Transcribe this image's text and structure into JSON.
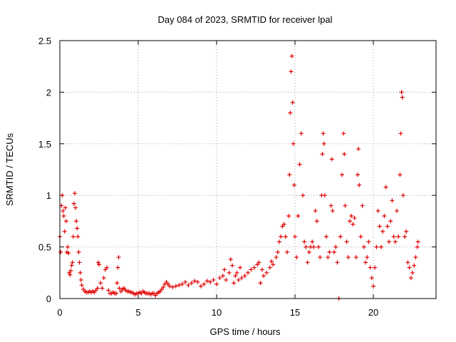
{
  "chart_data": {
    "type": "scatter",
    "title": "Day 084 of 2023, SRMTID for receiver lpal",
    "xlabel": "GPS time / hours",
    "ylabel": "SRMTID / TECUs",
    "xlim": [
      0,
      24
    ],
    "ylim": [
      0,
      2.5
    ],
    "xticks": [
      0,
      5,
      10,
      15,
      20
    ],
    "xtick_labels": [
      "0",
      "5",
      "10",
      "15",
      "20"
    ],
    "yticks": [
      0,
      0.5,
      1,
      1.5,
      2,
      2.5
    ],
    "ytick_labels": [
      "0",
      "0.5",
      "1",
      "1.5",
      "2",
      "2.5"
    ],
    "grid": true,
    "marker": "+",
    "color": "#e00000",
    "series": [
      {
        "name": "SRMTID",
        "points": [
          [
            0.0,
            0.6
          ],
          [
            0.05,
            0.45
          ],
          [
            0.1,
            0.9
          ],
          [
            0.15,
            1.0
          ],
          [
            0.2,
            0.85
          ],
          [
            0.25,
            0.8
          ],
          [
            0.3,
            0.65
          ],
          [
            0.35,
            0.88
          ],
          [
            0.4,
            0.75
          ],
          [
            0.45,
            0.45
          ],
          [
            0.5,
            0.5
          ],
          [
            0.55,
            0.44
          ],
          [
            0.6,
            0.25
          ],
          [
            0.65,
            0.23
          ],
          [
            0.7,
            0.27
          ],
          [
            0.75,
            0.32
          ],
          [
            0.8,
            0.35
          ],
          [
            0.85,
            0.6
          ],
          [
            0.9,
            0.92
          ],
          [
            0.95,
            1.02
          ],
          [
            1.0,
            0.88
          ],
          [
            1.05,
            0.75
          ],
          [
            1.1,
            0.68
          ],
          [
            1.15,
            0.6
          ],
          [
            1.2,
            0.45
          ],
          [
            1.25,
            0.35
          ],
          [
            1.3,
            0.25
          ],
          [
            1.35,
            0.18
          ],
          [
            1.4,
            0.13
          ],
          [
            1.5,
            0.09
          ],
          [
            1.6,
            0.07
          ],
          [
            1.7,
            0.06
          ],
          [
            1.8,
            0.06
          ],
          [
            1.9,
            0.07
          ],
          [
            2.0,
            0.06
          ],
          [
            2.1,
            0.07
          ],
          [
            2.2,
            0.06
          ],
          [
            2.3,
            0.08
          ],
          [
            2.4,
            0.1
          ],
          [
            2.45,
            0.35
          ],
          [
            2.5,
            0.33
          ],
          [
            2.6,
            0.15
          ],
          [
            2.7,
            0.1
          ],
          [
            2.8,
            0.2
          ],
          [
            2.9,
            0.28
          ],
          [
            3.0,
            0.3
          ],
          [
            3.1,
            0.08
          ],
          [
            3.2,
            0.05
          ],
          [
            3.3,
            0.05
          ],
          [
            3.4,
            0.06
          ],
          [
            3.5,
            0.05
          ],
          [
            3.6,
            0.05
          ],
          [
            3.65,
            0.15
          ],
          [
            3.7,
            0.3
          ],
          [
            3.75,
            0.4
          ],
          [
            3.8,
            0.1
          ],
          [
            3.9,
            0.07
          ],
          [
            4.0,
            0.09
          ],
          [
            4.1,
            0.1
          ],
          [
            4.2,
            0.08
          ],
          [
            4.3,
            0.07
          ],
          [
            4.4,
            0.07
          ],
          [
            4.5,
            0.06
          ],
          [
            4.6,
            0.06
          ],
          [
            4.7,
            0.05
          ],
          [
            4.8,
            0.04
          ],
          [
            4.9,
            0.05
          ],
          [
            5.0,
            0.05
          ],
          [
            5.1,
            0.06
          ],
          [
            5.2,
            0.05
          ],
          [
            5.3,
            0.07
          ],
          [
            5.4,
            0.06
          ],
          [
            5.5,
            0.05
          ],
          [
            5.6,
            0.05
          ],
          [
            5.7,
            0.05
          ],
          [
            5.8,
            0.04
          ],
          [
            5.9,
            0.05
          ],
          [
            6.0,
            0.05
          ],
          [
            6.1,
            0.03
          ],
          [
            6.2,
            0.05
          ],
          [
            6.3,
            0.06
          ],
          [
            6.4,
            0.07
          ],
          [
            6.5,
            0.09
          ],
          [
            6.6,
            0.11
          ],
          [
            6.7,
            0.14
          ],
          [
            6.8,
            0.16
          ],
          [
            6.9,
            0.14
          ],
          [
            7.0,
            0.12
          ],
          [
            7.2,
            0.11
          ],
          [
            7.4,
            0.12
          ],
          [
            7.6,
            0.13
          ],
          [
            7.8,
            0.14
          ],
          [
            8.0,
            0.16
          ],
          [
            8.2,
            0.13
          ],
          [
            8.4,
            0.15
          ],
          [
            8.6,
            0.17
          ],
          [
            8.8,
            0.16
          ],
          [
            9.0,
            0.12
          ],
          [
            9.2,
            0.14
          ],
          [
            9.4,
            0.17
          ],
          [
            9.6,
            0.16
          ],
          [
            9.8,
            0.18
          ],
          [
            10.0,
            0.14
          ],
          [
            10.2,
            0.2
          ],
          [
            10.4,
            0.22
          ],
          [
            10.5,
            0.28
          ],
          [
            10.6,
            0.18
          ],
          [
            10.8,
            0.25
          ],
          [
            10.9,
            0.38
          ],
          [
            11.0,
            0.32
          ],
          [
            11.1,
            0.15
          ],
          [
            11.2,
            0.22
          ],
          [
            11.3,
            0.25
          ],
          [
            11.4,
            0.18
          ],
          [
            11.5,
            0.3
          ],
          [
            11.6,
            0.2
          ],
          [
            11.8,
            0.22
          ],
          [
            12.0,
            0.25
          ],
          [
            12.2,
            0.28
          ],
          [
            12.4,
            0.3
          ],
          [
            12.6,
            0.33
          ],
          [
            12.7,
            0.35
          ],
          [
            12.8,
            0.15
          ],
          [
            12.9,
            0.28
          ],
          [
            13.0,
            0.22
          ],
          [
            13.2,
            0.25
          ],
          [
            13.4,
            0.3
          ],
          [
            13.5,
            0.36
          ],
          [
            13.6,
            0.33
          ],
          [
            13.8,
            0.4
          ],
          [
            13.9,
            0.45
          ],
          [
            14.0,
            0.55
          ],
          [
            14.1,
            0.6
          ],
          [
            14.2,
            0.7
          ],
          [
            14.3,
            0.72
          ],
          [
            14.4,
            0.6
          ],
          [
            14.5,
            0.45
          ],
          [
            14.6,
            0.8
          ],
          [
            14.65,
            1.2
          ],
          [
            14.7,
            1.8
          ],
          [
            14.75,
            2.2
          ],
          [
            14.8,
            2.35
          ],
          [
            14.85,
            1.9
          ],
          [
            14.9,
            1.5
          ],
          [
            14.95,
            1.1
          ],
          [
            15.0,
            0.6
          ],
          [
            15.1,
            0.4
          ],
          [
            15.2,
            0.8
          ],
          [
            15.3,
            1.3
          ],
          [
            15.4,
            1.6
          ],
          [
            15.5,
            1.0
          ],
          [
            15.6,
            0.55
          ],
          [
            15.7,
            0.5
          ],
          [
            15.8,
            0.35
          ],
          [
            15.9,
            0.45
          ],
          [
            16.0,
            0.5
          ],
          [
            16.1,
            0.55
          ],
          [
            16.2,
            0.5
          ],
          [
            16.3,
            0.85
          ],
          [
            16.4,
            0.75
          ],
          [
            16.5,
            0.5
          ],
          [
            16.6,
            0.4
          ],
          [
            16.7,
            1.0
          ],
          [
            16.75,
            1.4
          ],
          [
            16.8,
            1.6
          ],
          [
            16.85,
            1.5
          ],
          [
            16.9,
            1.0
          ],
          [
            17.0,
            0.6
          ],
          [
            17.1,
            0.4
          ],
          [
            17.2,
            0.45
          ],
          [
            17.3,
            0.9
          ],
          [
            17.35,
            1.35
          ],
          [
            17.4,
            0.85
          ],
          [
            17.5,
            0.45
          ],
          [
            17.6,
            0.5
          ],
          [
            17.7,
            0.35
          ],
          [
            17.8,
            0.0
          ],
          [
            17.9,
            0.6
          ],
          [
            18.0,
            1.2
          ],
          [
            18.1,
            1.6
          ],
          [
            18.15,
            1.4
          ],
          [
            18.2,
            0.9
          ],
          [
            18.3,
            0.55
          ],
          [
            18.4,
            0.4
          ],
          [
            18.5,
            0.75
          ],
          [
            18.6,
            0.8
          ],
          [
            18.7,
            0.72
          ],
          [
            18.8,
            0.78
          ],
          [
            18.9,
            0.4
          ],
          [
            19.0,
            1.2
          ],
          [
            19.05,
            1.45
          ],
          [
            19.1,
            1.1
          ],
          [
            19.2,
            0.6
          ],
          [
            19.3,
            0.9
          ],
          [
            19.4,
            0.5
          ],
          [
            19.5,
            0.35
          ],
          [
            19.6,
            0.4
          ],
          [
            19.7,
            0.55
          ],
          [
            19.8,
            0.3
          ],
          [
            19.9,
            0.2
          ],
          [
            20.0,
            0.12
          ],
          [
            20.1,
            0.3
          ],
          [
            20.2,
            0.5
          ],
          [
            20.3,
            0.85
          ],
          [
            20.4,
            0.7
          ],
          [
            20.5,
            0.5
          ],
          [
            20.6,
            0.65
          ],
          [
            20.7,
            0.8
          ],
          [
            20.8,
            1.08
          ],
          [
            20.9,
            0.7
          ],
          [
            21.0,
            0.55
          ],
          [
            21.1,
            0.75
          ],
          [
            21.2,
            0.95
          ],
          [
            21.3,
            0.6
          ],
          [
            21.4,
            0.55
          ],
          [
            21.5,
            0.85
          ],
          [
            21.6,
            0.6
          ],
          [
            21.7,
            1.2
          ],
          [
            21.75,
            1.6
          ],
          [
            21.8,
            2.0
          ],
          [
            21.85,
            1.95
          ],
          [
            21.9,
            1.0
          ],
          [
            22.0,
            0.6
          ],
          [
            22.1,
            0.65
          ],
          [
            22.2,
            0.35
          ],
          [
            22.3,
            0.3
          ],
          [
            22.4,
            0.2
          ],
          [
            22.5,
            0.25
          ],
          [
            22.6,
            0.32
          ],
          [
            22.7,
            0.4
          ],
          [
            22.8,
            0.5
          ],
          [
            22.85,
            0.55
          ]
        ]
      }
    ]
  }
}
